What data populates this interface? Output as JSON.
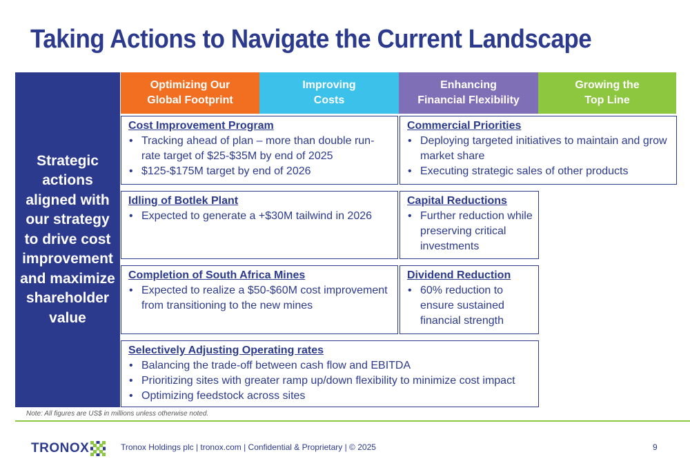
{
  "slide": {
    "title": "Taking Actions to Navigate the Current Landscape",
    "side_panel": "Strategic actions aligned with our strategy to drive cost improvement and maximize shareholder value",
    "headers": [
      {
        "label": "Optimizing Our\nGlobal Footprint",
        "color": "#f26f21"
      },
      {
        "label": "Improving\nCosts",
        "color": "#3cc2ea"
      },
      {
        "label": "Enhancing\nFinancial Flexibility",
        "color": "#7f6fb7"
      },
      {
        "label": "Growing the\nTop Line",
        "color": "#8dc63f"
      }
    ],
    "boxes": {
      "cost_improvement": {
        "title": "Cost Improvement Program",
        "bullets": [
          "Tracking ahead of plan – more than double run-rate target of $25-$35M by end of 2025",
          "$125-$175M target by end of 2026"
        ]
      },
      "commercial": {
        "title": "Commercial Priorities",
        "bullets": [
          "Deploying targeted initiatives to maintain and grow market share",
          "Executing strategic sales of other products"
        ]
      },
      "botlek": {
        "title": "Idling of Botlek Plant",
        "bullets": [
          "Expected to generate a +$30M tailwind in 2026"
        ]
      },
      "capital": {
        "title": "Capital Reductions",
        "bullets": [
          "Further reduction while preserving critical investments"
        ]
      },
      "south_africa": {
        "title": "Completion of South Africa Mines",
        "bullets": [
          "Expected to realize a $50-$60M cost improvement from transitioning to the new mines"
        ]
      },
      "dividend": {
        "title": "Dividend Reduction",
        "bullets": [
          "60% reduction to ensure sustained financial strength"
        ]
      },
      "operating_rates": {
        "title": "Selectively Adjusting Operating rates",
        "bullets": [
          "Balancing the trade-off between cash flow and EBITDA",
          "Prioritizing sites with greater ramp up/down flexibility to minimize cost impact",
          "Optimizing feedstock across sites"
        ]
      }
    },
    "note": "Note: All figures are US$ in millions unless otherwise noted.",
    "footer": {
      "logo_text": "TRONOX",
      "text": "Tronox Holdings plc  |  tronox.com  |  Confidential & Proprietary  |  © 2025",
      "page_number": "9"
    }
  }
}
